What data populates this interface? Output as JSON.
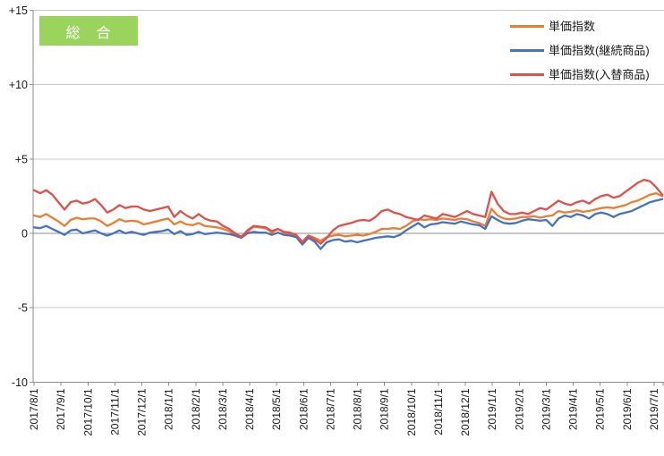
{
  "badge": {
    "label": "総　合",
    "bg_color": "#9BD45C",
    "text_color": "#FFFFFF"
  },
  "legend": {
    "position": "top-right",
    "items": [
      {
        "label": "単価指数",
        "color": "#ED7D31"
      },
      {
        "label": "単価指数(継続商品)",
        "color": "#4472C4"
      },
      {
        "label": "単価指数(入替商品)",
        "color": "#E2504A"
      }
    ]
  },
  "chart_data": {
    "type": "line",
    "title": "総　合",
    "sampling": "weekly",
    "grid": true,
    "legend_position": "top-right",
    "colors": {
      "grid": "#C9C9C9",
      "axis": "#8E8E8E",
      "zero_line": "#8E8E8E",
      "tick_text": "#1A1A1A"
    },
    "y_axis": {
      "ticks": [
        15,
        10,
        5,
        0,
        -5,
        -10
      ],
      "tick_labels": [
        "+15",
        "+10",
        "+5",
        "0",
        "-5",
        "-10"
      ],
      "range": [
        -10,
        15
      ]
    },
    "x_axis": {
      "tick_labels": [
        "2017/8/1",
        "2017/9/1",
        "2017/10/1",
        "2017/11/1",
        "2017/12/1",
        "2018/1/1",
        "2018/2/1",
        "2018/3/1",
        "2018/4/1",
        "2018/5/1",
        "2018/6/1",
        "2018/7/1",
        "2018/8/1",
        "2018/9/1",
        "2018/10/1",
        "2018/11/1",
        "2018/12/1",
        "2019/1/1",
        "2019/2/1",
        "2019/3/1",
        "2019/4/1",
        "2019/5/1",
        "2019/6/1",
        "2019/7/1"
      ],
      "label_rotation": -90
    },
    "series": [
      {
        "name": "単価指数",
        "color": "#ED7D31",
        "values": [
          1.2,
          1.1,
          1.3,
          1.05,
          0.8,
          0.5,
          0.9,
          1.05,
          0.95,
          1.0,
          1.0,
          0.8,
          0.5,
          0.7,
          0.95,
          0.8,
          0.85,
          0.8,
          0.6,
          0.7,
          0.8,
          0.9,
          1.0,
          0.6,
          0.8,
          0.6,
          0.55,
          0.7,
          0.5,
          0.45,
          0.4,
          0.3,
          0.15,
          -0.05,
          -0.2,
          0.1,
          0.45,
          0.4,
          0.35,
          0.05,
          0.3,
          0.05,
          -0.05,
          -0.15,
          -0.55,
          -0.15,
          -0.3,
          -0.5,
          -0.25,
          -0.15,
          -0.1,
          -0.2,
          -0.15,
          -0.1,
          -0.15,
          -0.05,
          0.1,
          0.3,
          0.3,
          0.35,
          0.3,
          0.5,
          0.8,
          0.95,
          0.9,
          0.95,
          0.9,
          1.0,
          0.95,
          0.9,
          1.0,
          0.95,
          0.8,
          0.7,
          0.5,
          1.65,
          1.2,
          1.0,
          0.95,
          1.0,
          1.1,
          1.1,
          1.15,
          1.05,
          1.15,
          1.2,
          1.5,
          1.4,
          1.45,
          1.55,
          1.45,
          1.5,
          1.6,
          1.7,
          1.75,
          1.7,
          1.8,
          1.9,
          2.1,
          2.2,
          2.4,
          2.6,
          2.7,
          2.5
        ]
      },
      {
        "name": "単価指数(継続商品)",
        "color": "#4472C4",
        "values": [
          0.4,
          0.35,
          0.5,
          0.3,
          0.1,
          -0.1,
          0.2,
          0.25,
          0.0,
          0.1,
          0.2,
          0.0,
          -0.15,
          0.0,
          0.2,
          0.0,
          0.1,
          0.0,
          -0.1,
          0.05,
          0.1,
          0.15,
          0.25,
          -0.05,
          0.15,
          -0.1,
          -0.05,
          0.1,
          -0.05,
          0.0,
          0.05,
          0.0,
          -0.05,
          -0.15,
          -0.3,
          0.0,
          0.1,
          0.05,
          0.05,
          -0.1,
          0.05,
          -0.1,
          -0.15,
          -0.25,
          -0.75,
          -0.3,
          -0.55,
          -1.05,
          -0.6,
          -0.45,
          -0.4,
          -0.55,
          -0.5,
          -0.6,
          -0.5,
          -0.4,
          -0.3,
          -0.25,
          -0.2,
          -0.25,
          -0.1,
          0.2,
          0.45,
          0.7,
          0.4,
          0.6,
          0.65,
          0.75,
          0.7,
          0.65,
          0.8,
          0.7,
          0.6,
          0.55,
          0.3,
          1.15,
          0.9,
          0.7,
          0.65,
          0.7,
          0.85,
          0.95,
          0.9,
          0.85,
          0.9,
          0.5,
          1.0,
          1.2,
          1.1,
          1.3,
          1.2,
          1.0,
          1.3,
          1.4,
          1.3,
          1.1,
          1.3,
          1.4,
          1.5,
          1.7,
          1.9,
          2.1,
          2.2,
          2.3
        ]
      },
      {
        "name": "単価指数(入替商品)",
        "color": "#E2504A",
        "values": [
          2.9,
          2.7,
          2.9,
          2.6,
          2.1,
          1.6,
          2.1,
          2.2,
          2.0,
          2.1,
          2.3,
          1.9,
          1.4,
          1.6,
          1.9,
          1.7,
          1.8,
          1.8,
          1.6,
          1.5,
          1.6,
          1.7,
          1.8,
          1.1,
          1.5,
          1.2,
          1.0,
          1.3,
          1.0,
          0.85,
          0.8,
          0.5,
          0.3,
          0.0,
          -0.25,
          0.2,
          0.5,
          0.45,
          0.4,
          0.15,
          0.3,
          0.1,
          0.05,
          -0.1,
          -0.6,
          -0.15,
          -0.4,
          -0.7,
          -0.3,
          0.2,
          0.5,
          0.6,
          0.7,
          0.85,
          0.9,
          0.85,
          1.1,
          1.5,
          1.6,
          1.4,
          1.3,
          1.1,
          1.0,
          0.9,
          1.2,
          1.1,
          1.0,
          1.3,
          1.2,
          1.1,
          1.3,
          1.5,
          1.3,
          1.2,
          1.1,
          2.8,
          2.0,
          1.5,
          1.3,
          1.3,
          1.4,
          1.3,
          1.5,
          1.7,
          1.6,
          1.9,
          2.2,
          2.0,
          1.9,
          2.1,
          2.2,
          2.0,
          2.3,
          2.5,
          2.6,
          2.4,
          2.5,
          2.8,
          3.1,
          3.4,
          3.6,
          3.5,
          3.1,
          2.6
        ]
      }
    ]
  }
}
